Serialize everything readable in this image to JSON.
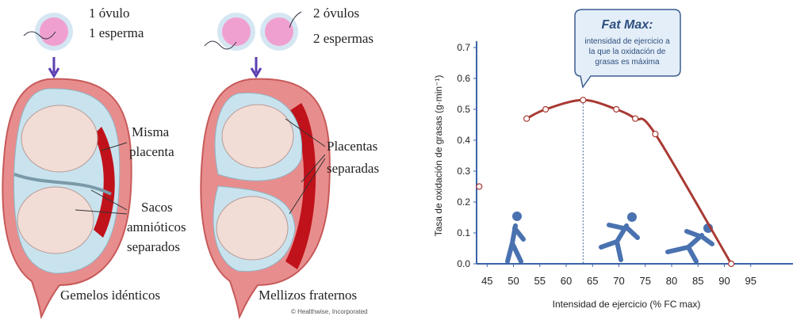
{
  "illustration": {
    "identical": {
      "eggs": "1 óvulo",
      "sperm": "1 esperma",
      "placenta": [
        "Misma",
        "placenta"
      ],
      "sacs": [
        "Sacos",
        "amnióticos",
        "separados"
      ],
      "caption": "Gemelos idénticos"
    },
    "fraternal": {
      "eggs": "2 óvulos",
      "sperm": "2 espermas",
      "placenta": [
        "Placentas",
        "separadas"
      ],
      "caption": "Mellizos fraternos"
    },
    "credit": "© Healthwise, Incorporated"
  },
  "chart_data": {
    "type": "line",
    "ylabel": "Tasa de oxidación de grasas (g·min⁻¹)",
    "xlabel": "Intensidad de ejercicio (% FC max)",
    "annotation": {
      "title": "Fat Max:",
      "lines": [
        "intensidad de ejercicio a",
        "la que la oxidación de",
        "grasas es máxima"
      ],
      "x": 63.2
    },
    "xlim": [
      43,
      100
    ],
    "ylim": [
      0,
      0.7
    ],
    "xticks": [
      45,
      50,
      55,
      60,
      65,
      70,
      75,
      80,
      85,
      90,
      95
    ],
    "yticks": [
      {
        "value": 0,
        "label": "0.0"
      },
      0.1,
      0.2,
      0.3,
      0.4,
      0.5,
      0.6,
      0.7
    ],
    "series": [
      {
        "color": "#a83a33",
        "x": [
          52.5,
          56.1,
          63.2,
          69.5,
          73.1,
          76.9,
          91.3
        ],
        "values": [
          0.47,
          0.5,
          0.53,
          0.5,
          0.47,
          0.42,
          0
        ]
      },
      {
        "color": "#a83a33",
        "line": false,
        "x": [
          43.5
        ],
        "values": [
          0.25
        ]
      }
    ]
  }
}
